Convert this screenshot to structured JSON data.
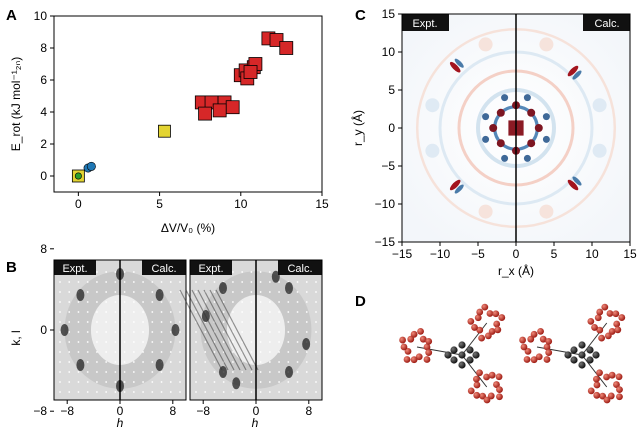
{
  "panel_letters": {
    "a": "A",
    "b": "B",
    "c": "C",
    "d": "D"
  },
  "chart_data": [
    {
      "panel": "A",
      "type": "scatter",
      "xlabel": "ΔV/V₀ (%)",
      "ylabel": "E_rot (kJ mol⁻¹₂ₙ)",
      "xlim": [
        -1.5,
        15
      ],
      "ylim": [
        -1,
        10
      ],
      "xticks": [
        "0",
        "5",
        "10",
        "15"
      ],
      "yticks": [
        "0",
        "2",
        "4",
        "6",
        "8",
        "10"
      ],
      "grid": false,
      "series": [
        {
          "marker": "square",
          "color": "#d62728",
          "x": [
            7.6,
            8.2,
            9.0,
            9.5,
            8.7,
            7.8,
            10.0,
            10.3,
            10.8,
            10.4,
            10.9,
            10.6,
            11.7,
            12.2,
            12.8
          ],
          "y": [
            4.6,
            4.6,
            4.6,
            4.3,
            4.1,
            3.9,
            6.3,
            6.6,
            6.8,
            6.1,
            7.0,
            6.5,
            8.6,
            8.5,
            8.0
          ]
        },
        {
          "marker": "circle",
          "color": "#1f77b4",
          "x": [
            0.6,
            0.8,
            5.3,
            5.4
          ],
          "y": [
            0.5,
            0.6,
            2.7,
            2.8
          ]
        },
        {
          "marker": "square",
          "color": "#e3d432",
          "x": [
            0.0,
            5.3
          ],
          "y": [
            0.0,
            2.8
          ]
        },
        {
          "marker": "circle",
          "color": "#2ca02c",
          "x": [
            0.0
          ],
          "y": [
            0.0
          ]
        }
      ]
    },
    {
      "panel": "C",
      "type": "heatmap",
      "xlabel": "r_x (Å)",
      "ylabel": "r_y (Å)",
      "xlim": [
        -15,
        15
      ],
      "ylim": [
        -15,
        15
      ],
      "xticks": [
        "−15",
        "−10",
        "−5",
        "0",
        "5",
        "10",
        "15"
      ],
      "yticks": [
        "−15",
        "−10",
        "−5",
        "0",
        "5",
        "10",
        "15"
      ],
      "left_label": "Expt.",
      "right_label": "Calc."
    },
    {
      "panel": "B",
      "type": "heatmap",
      "xlabel": "h",
      "ylabel": "k, l",
      "xticks": [
        "−8",
        "0",
        "8"
      ],
      "yticks": [
        "8",
        "0",
        "−8"
      ],
      "panels": [
        {
          "left_label": "Expt.",
          "right_label": "Calc."
        },
        {
          "left_label": "Expt.",
          "right_label": "Calc."
        }
      ]
    }
  ]
}
